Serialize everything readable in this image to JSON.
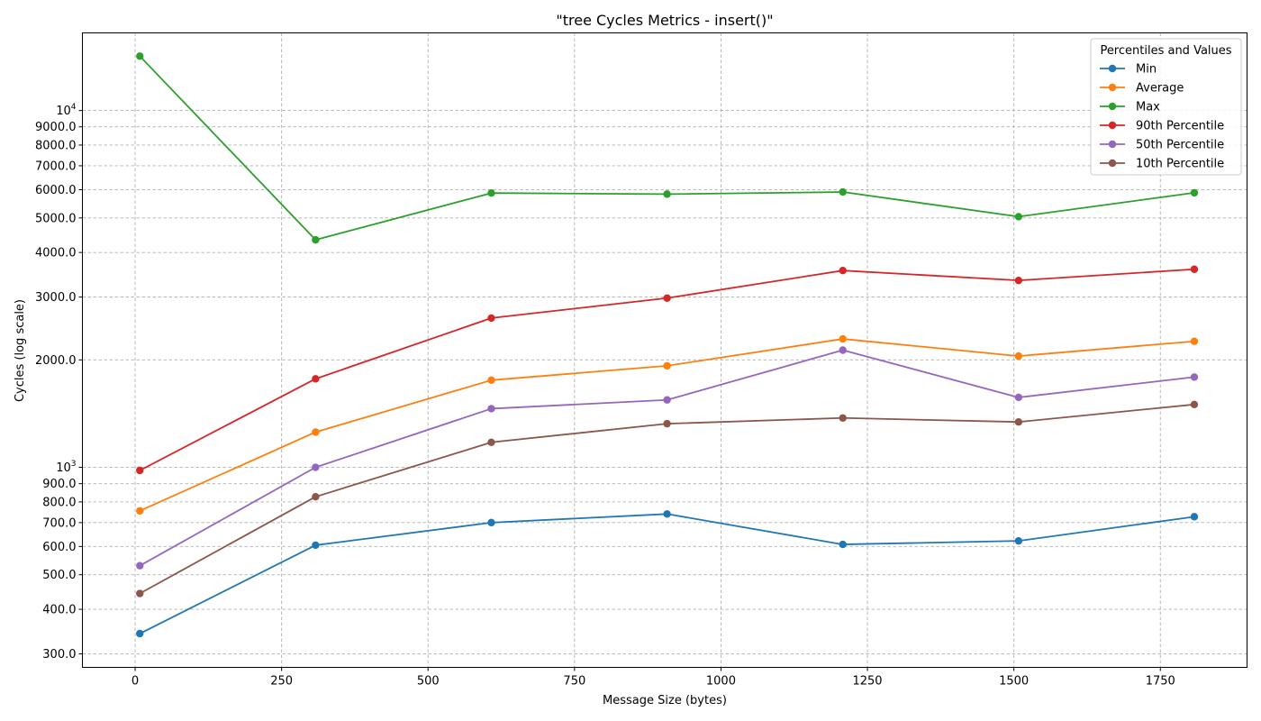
{
  "chart_data": {
    "type": "line",
    "title": "\"tree Cycles Metrics - insert()\"",
    "xlabel": "Message Size (bytes)",
    "ylabel": "Cycles (log scale)",
    "x": [
      8,
      308,
      608,
      908,
      1208,
      1508,
      1808
    ],
    "xlim": [
      -90,
      1898
    ],
    "ylim": [
      275,
      16500
    ],
    "yscale": "log",
    "grid": true,
    "legend_title": "Percentiles and Values",
    "legend_position": "top-right",
    "x_ticks": [
      {
        "value": 0,
        "label": "0"
      },
      {
        "value": 250,
        "label": "250"
      },
      {
        "value": 500,
        "label": "500"
      },
      {
        "value": 750,
        "label": "750"
      },
      {
        "value": 1000,
        "label": "1000"
      },
      {
        "value": 1250,
        "label": "1250"
      },
      {
        "value": 1500,
        "label": "1500"
      },
      {
        "value": 1750,
        "label": "1750"
      }
    ],
    "y_ticks": [
      {
        "value": 300,
        "label": "300.0"
      },
      {
        "value": 400,
        "label": "400.0"
      },
      {
        "value": 500,
        "label": "500.0"
      },
      {
        "value": 600,
        "label": "600.0"
      },
      {
        "value": 700,
        "label": "700.0"
      },
      {
        "value": 800,
        "label": "800.0"
      },
      {
        "value": 900,
        "label": "900.0"
      },
      {
        "value": 1000,
        "label": "10",
        "sup": "3"
      },
      {
        "value": 2000,
        "label": "2000.0"
      },
      {
        "value": 3000,
        "label": "3000.0"
      },
      {
        "value": 4000,
        "label": "4000.0"
      },
      {
        "value": 5000,
        "label": "5000.0"
      },
      {
        "value": 6000,
        "label": "6000.0"
      },
      {
        "value": 7000,
        "label": "7000.0"
      },
      {
        "value": 8000,
        "label": "8000.0"
      },
      {
        "value": 9000,
        "label": "9000.0"
      },
      {
        "value": 10000,
        "label": "10",
        "sup": "4"
      }
    ],
    "series": [
      {
        "name": "Min",
        "color": "#1f77b4",
        "values": [
          342,
          605,
          700,
          740,
          608,
          622,
          727
        ]
      },
      {
        "name": "Average",
        "color": "#ff7f0e",
        "values": [
          755,
          1255,
          1755,
          1925,
          2290,
          2050,
          2255
        ]
      },
      {
        "name": "Max",
        "color": "#2ca02c",
        "values": [
          14200,
          4340,
          5870,
          5830,
          5910,
          5040,
          5880
        ]
      },
      {
        "name": "90th Percentile",
        "color": "#d62728",
        "values": [
          980,
          1770,
          2620,
          2980,
          3560,
          3340,
          3590
        ]
      },
      {
        "name": "50th Percentile",
        "color": "#9467bd",
        "values": [
          530,
          1000,
          1460,
          1545,
          2130,
          1570,
          1790
        ]
      },
      {
        "name": "10th Percentile",
        "color": "#8c564b",
        "values": [
          443,
          827,
          1175,
          1325,
          1375,
          1340,
          1500
        ]
      }
    ]
  }
}
